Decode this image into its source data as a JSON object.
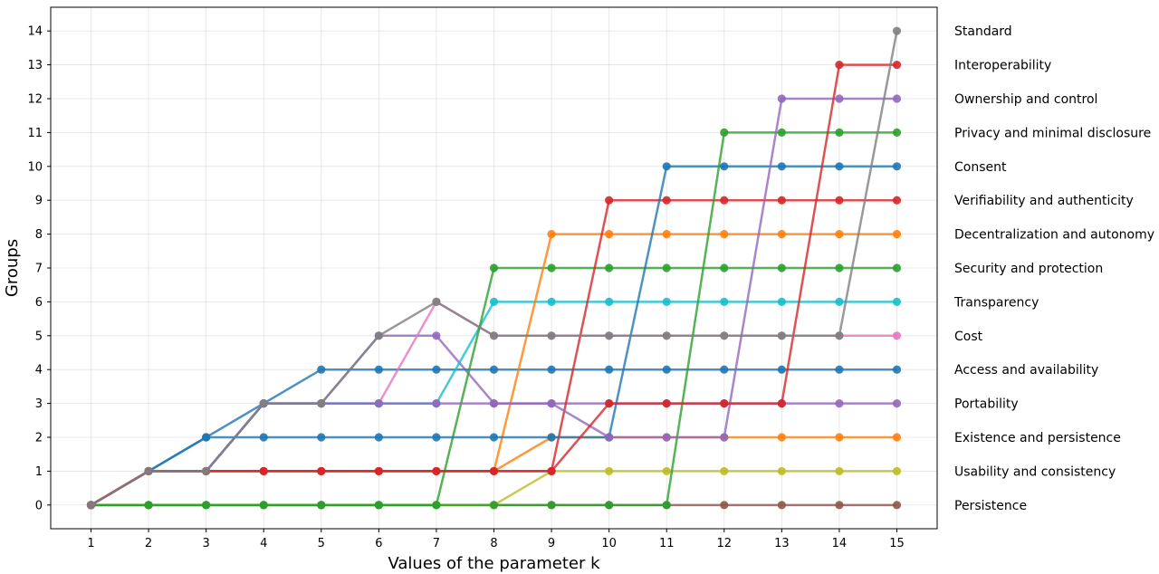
{
  "chart_data": {
    "type": "line",
    "title": "",
    "xlabel": "Values of the parameter k",
    "ylabel": "Groups",
    "x": [
      1,
      2,
      3,
      4,
      5,
      6,
      7,
      8,
      9,
      10,
      11,
      12,
      13,
      14,
      15
    ],
    "xlim": [
      0.3,
      15.7
    ],
    "ylim": [
      -0.7,
      14.7
    ],
    "xticks": [
      1,
      2,
      3,
      4,
      5,
      6,
      7,
      8,
      9,
      10,
      11,
      12,
      13,
      14,
      15
    ],
    "yticks": [
      0,
      1,
      2,
      3,
      4,
      5,
      6,
      7,
      8,
      9,
      10,
      11,
      12,
      13,
      14
    ],
    "grid": true,
    "legend_position": "right",
    "series": [
      {
        "name": "Persistence",
        "color": "#8c564b",
        "values": [
          0,
          0,
          0,
          0,
          0,
          0,
          0,
          0,
          0,
          0,
          0,
          0,
          0,
          0,
          0
        ]
      },
      {
        "name": "Usability and consistency",
        "color": "#bcbd22",
        "values": [
          0,
          0,
          0,
          0,
          0,
          0,
          0,
          0,
          1,
          1,
          1,
          1,
          1,
          1,
          1
        ]
      },
      {
        "name": "Existence and persistence",
        "color": "#ff7f0e",
        "values": [
          0,
          1,
          1,
          1,
          1,
          1,
          1,
          1,
          2,
          2,
          2,
          2,
          2,
          2,
          2
        ]
      },
      {
        "name": "Portability",
        "color": "#9467bd",
        "values": [
          0,
          1,
          1,
          3,
          3,
          5,
          5,
          3,
          3,
          3,
          3,
          3,
          3,
          3,
          3
        ]
      },
      {
        "name": "Access and availability",
        "color": "#1f77b4",
        "values": [
          0,
          1,
          2,
          3,
          4,
          4,
          4,
          4,
          4,
          4,
          4,
          4,
          4,
          4,
          4
        ]
      },
      {
        "name": "Cost",
        "color": "#e377c2",
        "values": [
          0,
          1,
          1,
          3,
          3,
          3,
          6,
          5,
          5,
          5,
          5,
          5,
          5,
          5,
          5
        ]
      },
      {
        "name": "Transparency",
        "color": "#17becf",
        "values": [
          0,
          1,
          1,
          3,
          3,
          3,
          3,
          6,
          6,
          6,
          6,
          6,
          6,
          6,
          6
        ]
      },
      {
        "name": "Security and protection",
        "color": "#2ca02c",
        "values": [
          0,
          0,
          0,
          0,
          0,
          0,
          0,
          7,
          7,
          7,
          7,
          7,
          7,
          7,
          7
        ]
      },
      {
        "name": "Decentralization and autonomy",
        "color": "#ff7f0e",
        "values": [
          0,
          1,
          1,
          1,
          1,
          1,
          1,
          1,
          8,
          8,
          8,
          8,
          8,
          8,
          8
        ]
      },
      {
        "name": "Verifiability and authenticity",
        "color": "#d62728",
        "values": [
          0,
          1,
          1,
          1,
          1,
          1,
          1,
          1,
          1,
          9,
          9,
          9,
          9,
          9,
          9
        ]
      },
      {
        "name": "Consent",
        "color": "#1f77b4",
        "values": [
          0,
          1,
          2,
          2,
          2,
          2,
          2,
          2,
          2,
          2,
          10,
          10,
          10,
          10,
          10
        ]
      },
      {
        "name": "Privacy and minimal disclosure",
        "color": "#2ca02c",
        "values": [
          0,
          0,
          0,
          0,
          0,
          0,
          0,
          0,
          0,
          0,
          0,
          11,
          11,
          11,
          11
        ]
      },
      {
        "name": "Ownership and control",
        "color": "#9467bd",
        "values": [
          0,
          1,
          1,
          3,
          3,
          3,
          3,
          3,
          3,
          2,
          2,
          2,
          12,
          12,
          12
        ]
      },
      {
        "name": "Interoperability",
        "color": "#d62728",
        "values": [
          0,
          1,
          1,
          1,
          1,
          1,
          1,
          1,
          1,
          3,
          3,
          3,
          3,
          13,
          13
        ]
      },
      {
        "name": "Standard",
        "color": "#7f7f7f",
        "values": [
          0,
          1,
          1,
          3,
          3,
          5,
          6,
          5,
          5,
          5,
          5,
          5,
          5,
          5,
          14
        ]
      }
    ]
  }
}
